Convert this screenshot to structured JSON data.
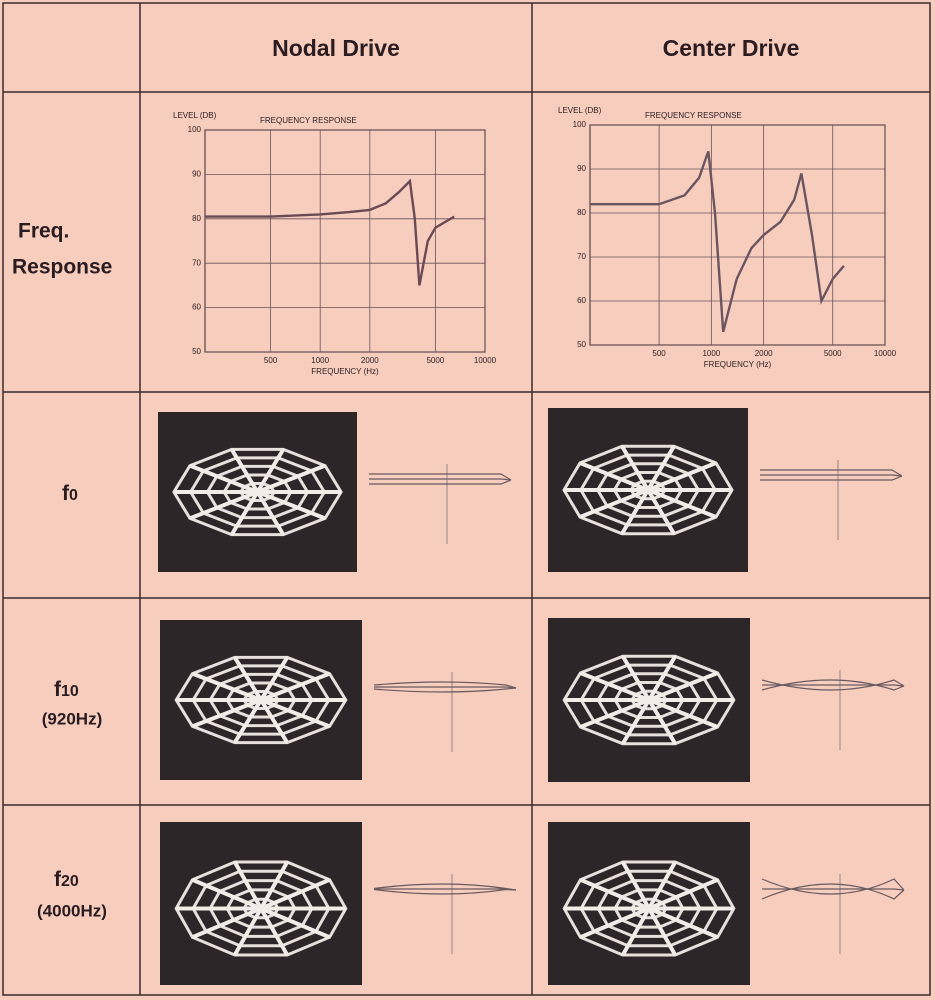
{
  "table": {
    "headers": [
      "Nodal Drive",
      "Center Drive"
    ],
    "rows": [
      {
        "label": [
          "Freq.",
          "Response"
        ]
      },
      {
        "label": "f",
        "sub": "0"
      },
      {
        "label": "f",
        "sub": "10",
        "note": "(920Hz)"
      },
      {
        "label": "f",
        "sub": "20",
        "note": "(4000Hz)"
      }
    ]
  },
  "chart_data": [
    {
      "type": "line",
      "title": "FREQUENCY RESPONSE",
      "ylabel": "LEVEL (DB)",
      "xlabel": "FREQUENCY (Hz)",
      "xscale": "log",
      "grid": true,
      "xlim": [
        200,
        10000
      ],
      "ylim": [
        50,
        100
      ],
      "xticks": [
        500,
        1000,
        2000,
        5000,
        10000
      ],
      "yticks": [
        50,
        60,
        70,
        80,
        90,
        100
      ],
      "x": [
        200,
        500,
        1000,
        1500,
        2000,
        2500,
        3000,
        3500,
        3750,
        4000,
        4500,
        5000,
        6500
      ],
      "series": [
        {
          "color": "#6a4a55",
          "values": [
            80.5,
            80.5,
            81,
            81.5,
            82,
            83.5,
            86,
            88.5,
            80,
            65,
            75,
            78,
            80.5
          ]
        }
      ]
    },
    {
      "type": "line",
      "title": "FREQUENCY RESPONSE",
      "ylabel": "LEVEL (DB)",
      "xlabel": "FREQUENCY (Hz)",
      "xscale": "log",
      "grid": true,
      "xlim": [
        200,
        10000
      ],
      "ylim": [
        50,
        100
      ],
      "xticks": [
        500,
        1000,
        2000,
        5000,
        10000
      ],
      "yticks": [
        50,
        60,
        70,
        80,
        90,
        100
      ],
      "x": [
        200,
        500,
        700,
        850,
        960,
        1050,
        1170,
        1400,
        1700,
        2000,
        2500,
        3000,
        3300,
        3800,
        4300,
        5000,
        5800
      ],
      "series": [
        {
          "color": "#6a5560",
          "values": [
            82,
            82,
            84,
            88,
            94,
            80,
            53,
            65,
            72,
            75,
            78,
            83,
            89,
            75,
            60,
            65,
            68
          ]
        }
      ]
    }
  ]
}
